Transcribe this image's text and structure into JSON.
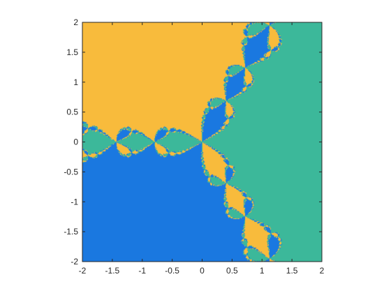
{
  "chart_data": {
    "type": "heatmap",
    "title": "",
    "xlabel": "",
    "ylabel": "",
    "xlim": [
      -2,
      2
    ],
    "ylim": [
      -2,
      2
    ],
    "x_ticks": [
      "-2",
      "-1.5",
      "-1",
      "-0.5",
      "0",
      "0.5",
      "1",
      "1.5",
      "2"
    ],
    "y_ticks": [
      "2",
      "1.5",
      "1",
      "0.5",
      "0",
      "-0.5",
      "-1",
      "-1.5",
      "-2"
    ],
    "grid": false,
    "legend": "none",
    "colors": {
      "root_1": "#3cb89a",
      "root_2": "#f8bb3c",
      "root_3": "#1a78e0",
      "axis": "#262626"
    }
  }
}
